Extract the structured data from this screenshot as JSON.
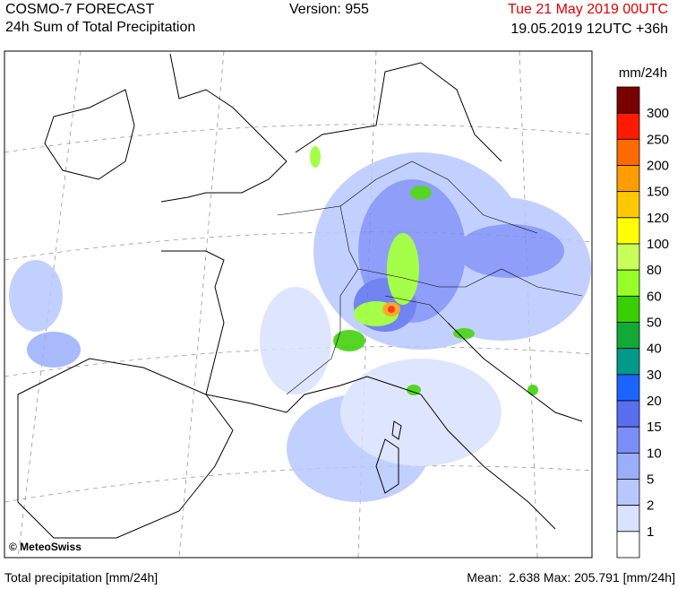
{
  "header": {
    "title": "COSMO-7 FORECAST",
    "subtitle": "24h Sum of Total Precipitation",
    "version": "Version: 955",
    "valid_time": "Tue 21 May 2019 00UTC",
    "run_time": "19.05.2019 12UTC +36h"
  },
  "legend": {
    "unit": "mm/24h",
    "levels": [
      300,
      250,
      200,
      150,
      120,
      100,
      80,
      60,
      50,
      40,
      30,
      20,
      15,
      10,
      5,
      2,
      1
    ],
    "colors": [
      "#7a0000",
      "#ff1a00",
      "#ff6a00",
      "#ff9c00",
      "#ffc800",
      "#ffff00",
      "#c8ff5a",
      "#96ff2a",
      "#38d000",
      "#12aa36",
      "#009a8a",
      "#1c64ff",
      "#5a6ef0",
      "#7b8ef8",
      "#9aaefc",
      "#b8c8ff",
      "#d9e2ff",
      "#ffffff"
    ]
  },
  "map": {
    "credit": "© MeteoSwiss"
  },
  "footer": {
    "left": "Total precipitation [mm/24h]",
    "right": "Mean:  2.638 Max: 205.791 [mm/24h]"
  }
}
